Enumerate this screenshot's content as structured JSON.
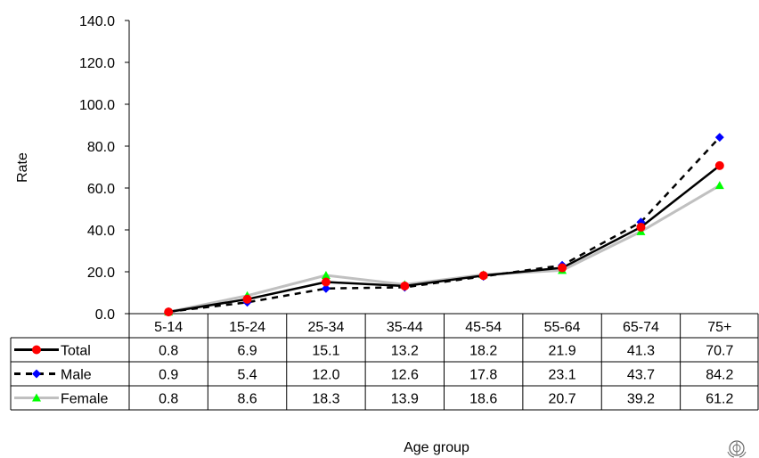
{
  "chart_data": {
    "type": "line",
    "ylabel": "Rate",
    "xlabel": "Age group",
    "ylim": [
      0,
      140
    ],
    "yticks": [
      "0.0",
      "20.0",
      "40.0",
      "60.0",
      "80.0",
      "100.0",
      "120.0",
      "140.0"
    ],
    "categories": [
      "5-14",
      "15-24",
      "25-34",
      "35-44",
      "45-54",
      "55-64",
      "65-74",
      "75+"
    ],
    "legend_placement": "data-table",
    "series": [
      {
        "name": "Total",
        "color": "#000000",
        "marker_color": "#ff0000",
        "marker": "circle",
        "line_style": "solid",
        "values": [
          0.8,
          6.9,
          15.1,
          13.2,
          18.2,
          21.9,
          41.3,
          70.7
        ],
        "labels": [
          "0.8",
          "6.9",
          "15.1",
          "13.2",
          "18.2",
          "21.9",
          "41.3",
          "70.7"
        ]
      },
      {
        "name": "Male",
        "color": "#000000",
        "marker_color": "#0000ff",
        "marker": "diamond",
        "line_style": "dashed",
        "values": [
          0.9,
          5.4,
          12.0,
          12.6,
          17.8,
          23.1,
          43.7,
          84.2
        ],
        "labels": [
          "0.9",
          "5.4",
          "12.0",
          "12.6",
          "17.8",
          "23.1",
          "43.7",
          "84.2"
        ]
      },
      {
        "name": "Female",
        "color": "#c0c0c0",
        "marker_color": "#00ff00",
        "marker": "triangle",
        "line_style": "solid",
        "values": [
          0.8,
          8.6,
          18.3,
          13.9,
          18.6,
          20.7,
          39.2,
          61.2
        ],
        "labels": [
          "0.8",
          "8.6",
          "18.3",
          "13.9",
          "18.6",
          "20.7",
          "39.2",
          "61.2"
        ]
      }
    ]
  },
  "logo_icon": "who-emblem-icon"
}
